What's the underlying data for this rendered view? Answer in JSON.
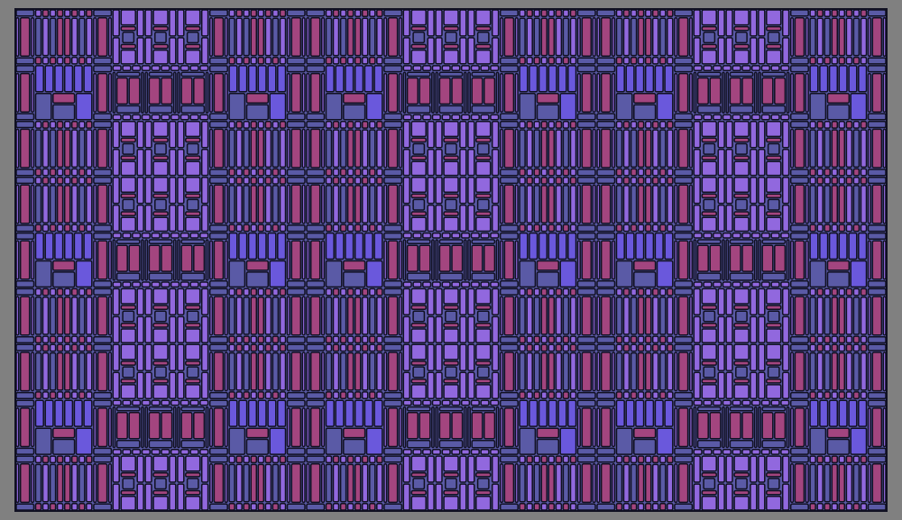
{
  "pattern": {
    "style": "tiled stained-glass rectangle mosaic",
    "columns": 9,
    "rows": 9,
    "column_types": [
      "A",
      "B",
      "A",
      "A",
      "B",
      "A",
      "A",
      "B",
      "A"
    ],
    "colors": {
      "background": "#808080",
      "outline": "#111122",
      "slate": "#5a5aa6",
      "pink": "#a3457f",
      "violet": "#9168de",
      "indigo": "#6a58dc"
    }
  }
}
